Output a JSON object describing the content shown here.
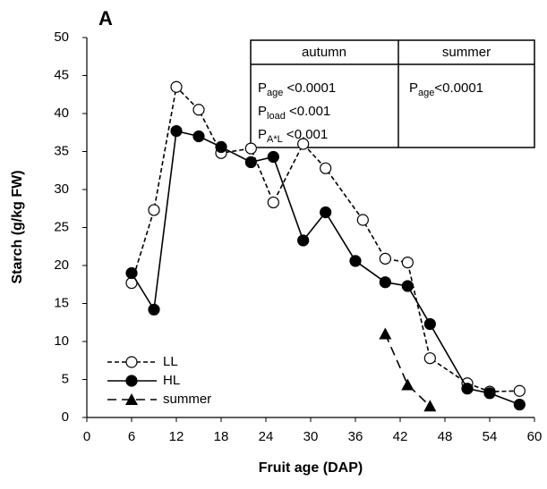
{
  "chart_data": {
    "type": "line",
    "title": "A",
    "xlabel": "Fruit age (DAP)",
    "ylabel": "Starch (g/kg FW)",
    "xlim": [
      0,
      60
    ],
    "xticks": [
      0,
      6,
      12,
      18,
      24,
      30,
      36,
      42,
      48,
      54,
      60
    ],
    "ylim": [
      0,
      50
    ],
    "yticks": [
      0,
      5,
      10,
      15,
      20,
      25,
      30,
      35,
      40,
      45,
      50
    ],
    "legend": "lower left",
    "series": [
      {
        "name": "LL",
        "color": "#000000",
        "marker": "open-circle",
        "dash": "short",
        "x": [
          6,
          9,
          12,
          15,
          18,
          22,
          25,
          29,
          32,
          37,
          40,
          43,
          46,
          51,
          54,
          58
        ],
        "values": [
          17.7,
          27.3,
          43.5,
          40.5,
          34.8,
          35.4,
          28.3,
          36,
          32.8,
          26,
          20.9,
          20.4,
          7.8,
          4.5,
          3.4,
          3.5
        ]
      },
      {
        "name": "HL",
        "color": "#000000",
        "marker": "filled-circle",
        "dash": "solid",
        "x": [
          6,
          9,
          12,
          15,
          18,
          22,
          25,
          29,
          32,
          36,
          40,
          43,
          46,
          51,
          54,
          58
        ],
        "values": [
          19,
          14.2,
          37.7,
          37,
          35.6,
          33.6,
          34.3,
          23.3,
          27,
          20.6,
          17.8,
          17.3,
          12.3,
          3.8,
          3.2,
          1.7
        ]
      },
      {
        "name": "summer",
        "color": "#000000",
        "marker": "triangle",
        "dash": "long",
        "x": [
          40,
          43,
          46
        ],
        "values": [
          11,
          4.3,
          1.5
        ]
      }
    ],
    "stats_table": {
      "headers": [
        "autumn",
        "summer"
      ],
      "autumn": [
        {
          "p": "P",
          "sub": "age",
          "rest": " <0.0001"
        },
        {
          "p": "P",
          "sub": "load",
          "rest": " <0.001"
        },
        {
          "p": "P",
          "sub": "A*L",
          "rest": " <0.001"
        }
      ],
      "summer": [
        {
          "p": "P",
          "sub": "age",
          "rest": "<0.0001"
        }
      ]
    }
  }
}
